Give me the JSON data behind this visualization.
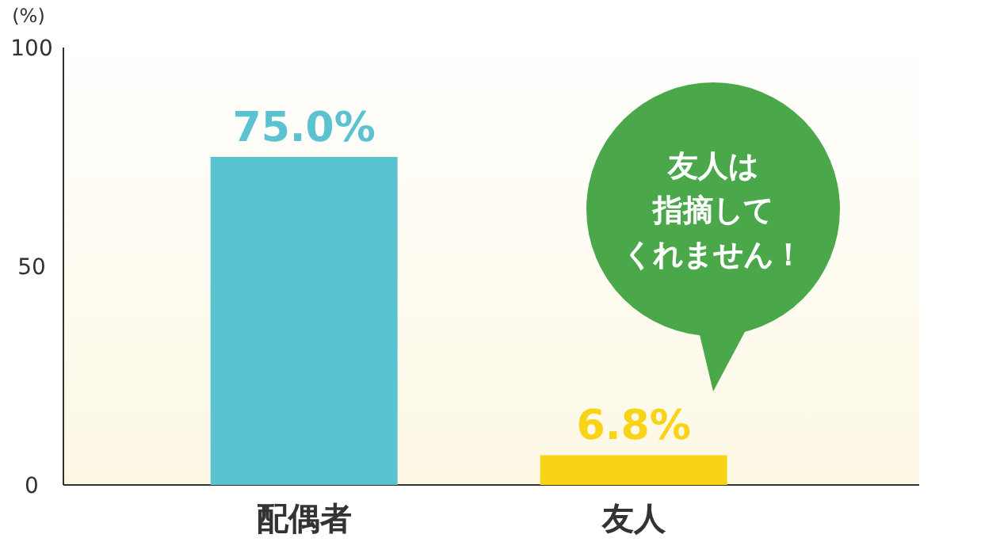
{
  "chart_data": {
    "type": "bar",
    "ylabel": "(%)",
    "categories": [
      "配偶者",
      "友人"
    ],
    "values": [
      75.0,
      6.8
    ],
    "colors": [
      "#5bc3d0",
      "#f8d317"
    ],
    "value_labels": [
      "75.0%",
      "6.8%"
    ],
    "ylim": [
      0,
      100
    ],
    "yticks": [
      0,
      50,
      100
    ],
    "grid": false,
    "annotations": [
      "友人は",
      "指摘して",
      "くれません！"
    ]
  }
}
